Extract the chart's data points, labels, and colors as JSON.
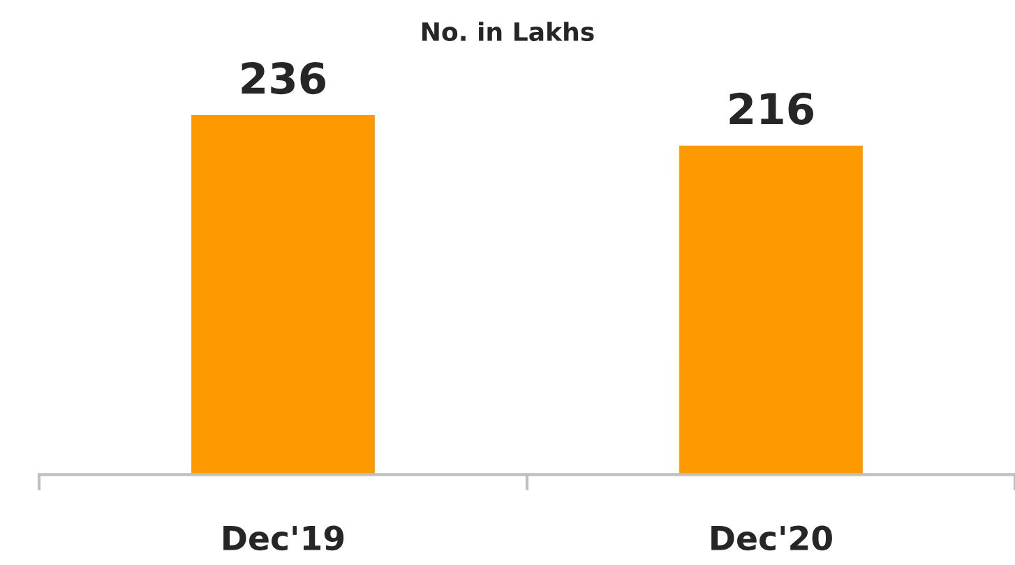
{
  "chart_data": {
    "type": "bar",
    "title": "No. in Lakhs",
    "categories": [
      "Dec'19",
      "Dec'20"
    ],
    "values": [
      236,
      216
    ],
    "color": "#ff9900",
    "data_labels": true,
    "grid": false
  }
}
